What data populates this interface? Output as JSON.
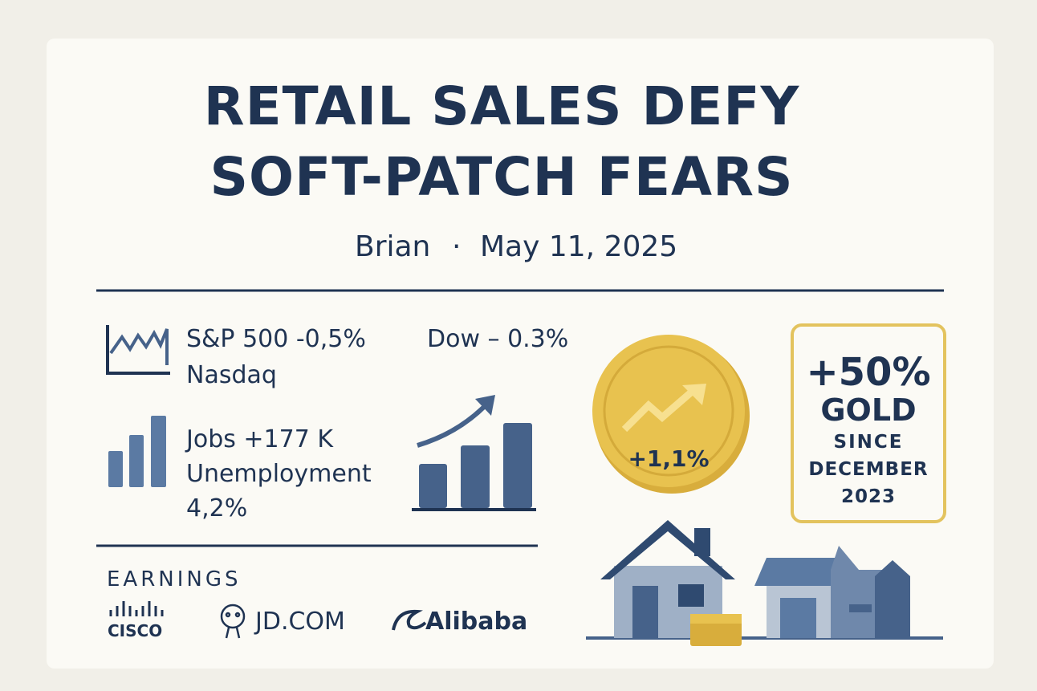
{
  "header": {
    "title_lines": [
      "RETAIL SALES DEFY",
      "SOFT-PATCH FEARS"
    ],
    "byline": {
      "author": "Brian",
      "separator": "·",
      "date": "May 11, 2025"
    }
  },
  "markets": {
    "sp500": "S&P 500 -0,5%",
    "nasdaq": "Nasdaq",
    "dow": "Dow – 0.3%"
  },
  "jobs": {
    "jobs": "Jobs +177 K",
    "unemployment_label": "Unemployment",
    "unemployment_value": "4,2%"
  },
  "coin": {
    "label": "+1,1%"
  },
  "gold_box": {
    "lines": [
      "+50%",
      "GOLD",
      "SINCE",
      "DECEMBER",
      "2023"
    ]
  },
  "earnings": {
    "heading": "EARNINGS",
    "companies": [
      "CISCO",
      "JD.COM",
      "Alibaba"
    ]
  }
}
